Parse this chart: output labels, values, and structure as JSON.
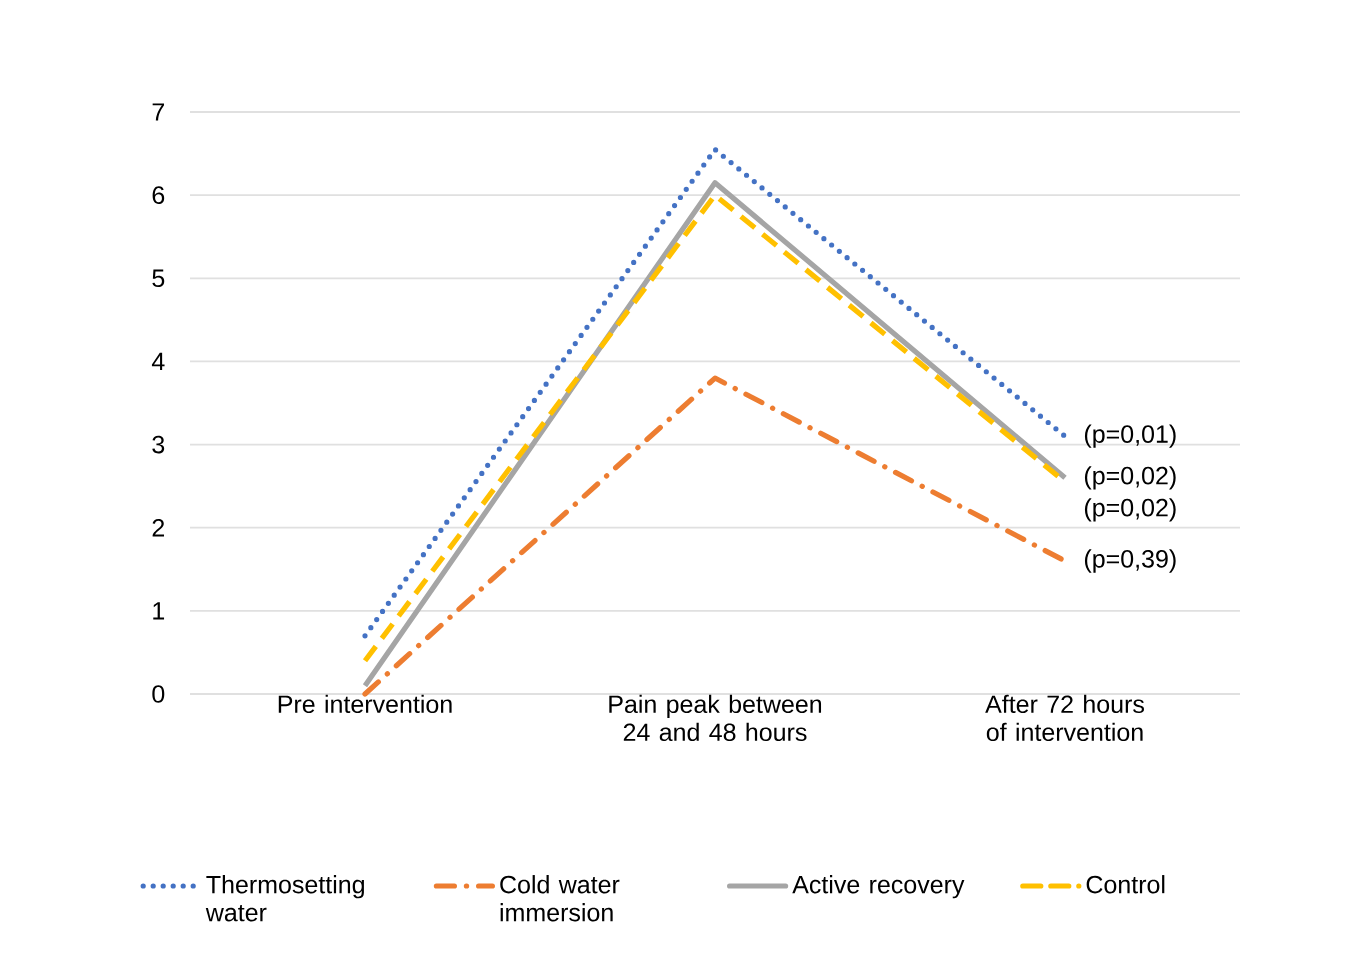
{
  "chart_data": {
    "type": "line",
    "categories": [
      "Pre intervention",
      "Pain peak between 24 and 48 hours",
      "After 72 hours of intervention"
    ],
    "series": [
      {
        "name": "Thermosetting water",
        "color": "#4472c4",
        "line_style": "dotted",
        "values": [
          0.7,
          6.55,
          3.1
        ]
      },
      {
        "name": "Cold water immersion",
        "color": "#ed7d31",
        "line_style": "dashdot",
        "values": [
          0.0,
          3.8,
          1.6
        ]
      },
      {
        "name": "Active recovery",
        "color": "#a5a5a5",
        "line_style": "solid",
        "values": [
          0.1,
          6.15,
          2.6
        ]
      },
      {
        "name": "Control",
        "color": "#ffc000",
        "line_style": "dashed",
        "values": [
          0.4,
          6.0,
          2.55
        ]
      }
    ],
    "ylim": [
      0,
      7
    ],
    "yticks": [
      0,
      1,
      2,
      3,
      4,
      5,
      6,
      7
    ],
    "grid": "y",
    "legend": "bottom",
    "marker": "none",
    "annotations": [
      "(p=0,01)",
      "(p=0,02)",
      "(p=0,02)",
      "(p=0,39)"
    ]
  }
}
